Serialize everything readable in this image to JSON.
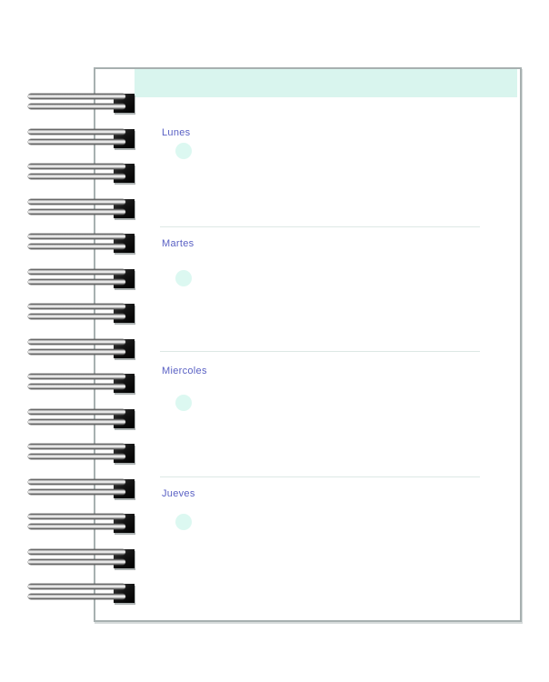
{
  "document_type": "weekly-planner-notebook-page",
  "header": {
    "band_label": ""
  },
  "planner": {
    "days": [
      {
        "label": "Lunes"
      },
      {
        "label": "Martes"
      },
      {
        "label": "Miercoles"
      },
      {
        "label": "Jueves"
      }
    ]
  },
  "binding": {
    "coil_count": 15
  },
  "colors": {
    "header_band": "#d9f5ee",
    "bullet_circle": "#dcf8f1",
    "day_label": "#5a61c4",
    "divider_line": "#dde8e5",
    "page_border": "#a7b0b0"
  }
}
